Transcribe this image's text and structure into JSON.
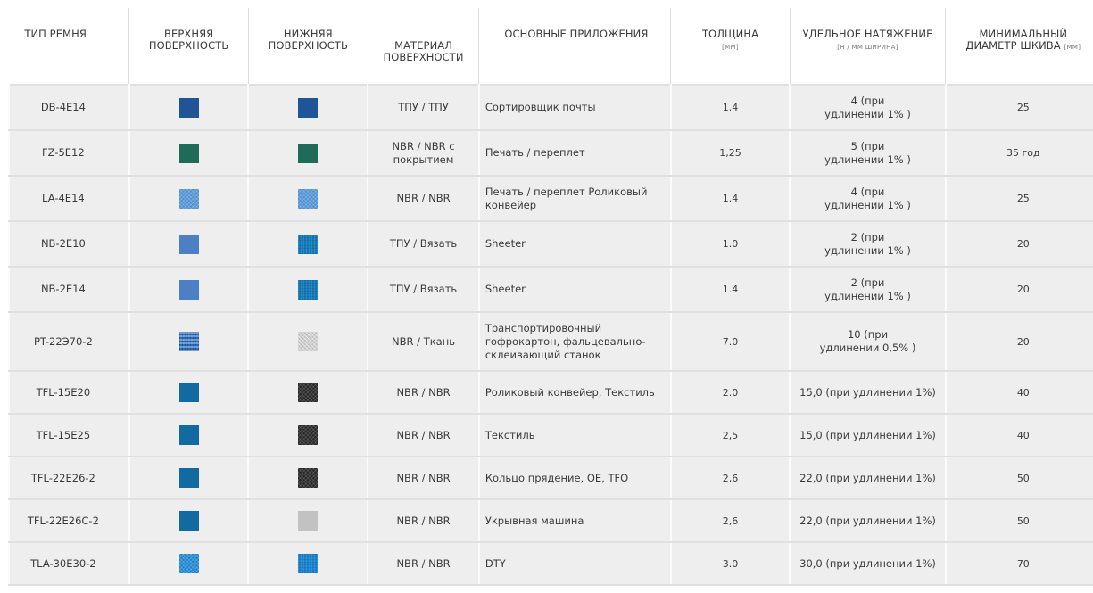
{
  "headers": {
    "type": "ТИП РЕМНЯ",
    "top_surface": "ВЕРХНЯЯ ПОВЕРХНОСТЬ",
    "bottom_surface": "НИЖНЯЯ ПОВЕРХНОСТЬ",
    "material": "МАТЕРИАЛ ПОВЕРХНОСТИ",
    "applications": "ОСНОВНЫЕ ПРИЛОЖЕНИЯ",
    "thickness": "ТОЛЩИНА",
    "thickness_unit": "[ММ]",
    "tension": "УДЕЛЬНОЕ НАТЯЖЕНИЕ",
    "tension_unit": "[Н / ММ ШИРИНА]",
    "min_diameter": "МИНИМАЛЬНЫЙ ДИАМЕТР ШКИВА",
    "min_diameter_unit": "[ММ]"
  },
  "rows": [
    {
      "type": "DB-4E14",
      "top_color": "#1f5597",
      "top_texture": "solid",
      "bottom_color": "#1f5597",
      "bottom_texture": "solid",
      "material": "ТПУ / ТПУ",
      "applications": "Сортировщик почты",
      "thickness": "1.4",
      "tension_line1": "4 (при",
      "tension_line2": "удлинении 1% )",
      "min_diameter": "25"
    },
    {
      "type": "FZ-5E12",
      "top_color": "#1f6b57",
      "top_texture": "solid",
      "bottom_color": "#1f6b57",
      "bottom_texture": "solid",
      "material_line1": "NBR / NBR с",
      "material_line2": "покрытием",
      "applications": "Печать / переплет",
      "thickness": "1,25",
      "tension_line1": "5 (при",
      "tension_line2": "удлинении 1% )",
      "min_diameter": "35 год"
    },
    {
      "type": "LA-4E14",
      "top_color": "#4f90d3",
      "top_texture": "mesh",
      "bottom_color": "#4f90d3",
      "bottom_texture": "mesh",
      "material": "NBR / NBR",
      "applications_line1": "Печать / переплет Роликовый",
      "applications_line2": "конвейер",
      "thickness": "1.4",
      "tension_line1": "4 (при",
      "tension_line2": "удлинении 1% )",
      "min_diameter": "25"
    },
    {
      "type": "NB-2E10",
      "top_color": "#4d7fc4",
      "top_texture": "solid",
      "bottom_color": "#1279b8",
      "bottom_texture": "knit",
      "material": "ТПУ / Вязать",
      "applications": "Sheeter",
      "thickness": "1.0",
      "tension_line1": "2 (при",
      "tension_line2": "удлинении 1% )",
      "min_diameter": "20"
    },
    {
      "type": "NB-2E14",
      "top_color": "#4d7fc4",
      "top_texture": "solid",
      "bottom_color": "#1279b8",
      "bottom_texture": "knit",
      "material": "ТПУ / Вязать",
      "applications": "Sheeter",
      "thickness": "1.4",
      "tension_line1": "2 (при",
      "tension_line2": "удлинении 1% )",
      "min_diameter": "20"
    },
    {
      "type": "PT-22Э70-2",
      "top_color": "#2a6fbf",
      "top_texture": "weave",
      "bottom_color": "#cfcfcf",
      "bottom_texture": "fabric",
      "material": "NBR / Ткань",
      "applications_line1": "Транспортировочный",
      "applications_line2": "гофрокартон, фальцевально-",
      "applications_line3": "склеивающий станок",
      "thickness": "7.0",
      "tension_line1": "10 (при",
      "tension_line2": "удлинении 0,5% )",
      "min_diameter": "20"
    },
    {
      "type": "TFL-15E20",
      "top_color": "#136aa0",
      "top_texture": "solid",
      "bottom_color": "#262626",
      "bottom_texture": "black-mesh",
      "material": "NBR / NBR",
      "applications": "Роликовый конвейер, Текстиль",
      "thickness": "2.0",
      "tension": "15,0 (при удлинении 1%)",
      "min_diameter": "40"
    },
    {
      "type": "TFL-15E25",
      "top_color": "#136aa0",
      "top_texture": "solid",
      "bottom_color": "#262626",
      "bottom_texture": "black-mesh",
      "material": "NBR / NBR",
      "applications": "Текстиль",
      "thickness": "2,5",
      "tension": "15,0 (при удлинении 1%)",
      "min_diameter": "40"
    },
    {
      "type": "TFL-22E26-2",
      "top_color": "#136aa0",
      "top_texture": "solid",
      "bottom_color": "#262626",
      "bottom_texture": "black-mesh",
      "material": "NBR / NBR",
      "applications": "Кольцо прядение, OE, TFO",
      "thickness": "2,6",
      "tension": "22,0 (при удлинении 1%)",
      "min_diameter": "50"
    },
    {
      "type": "TFL-22E26C-2",
      "top_color": "#136aa0",
      "top_texture": "solid",
      "bottom_color": "#c2c2c2",
      "bottom_texture": "solid",
      "material": "NBR / NBR",
      "applications": "Укрывная машина",
      "thickness": "2,6",
      "tension": "22,0 (при удлинении 1%)",
      "min_diameter": "50"
    },
    {
      "type": "TLA-30E30-2",
      "top_color": "#1a82cf",
      "top_texture": "mesh",
      "bottom_color": "#1a82cf",
      "bottom_texture": "knit",
      "material": "NBR / NBR",
      "applications": "DTY",
      "thickness": "3.0",
      "tension": "30,0 (при удлинении 1%)",
      "min_diameter": "70"
    }
  ]
}
